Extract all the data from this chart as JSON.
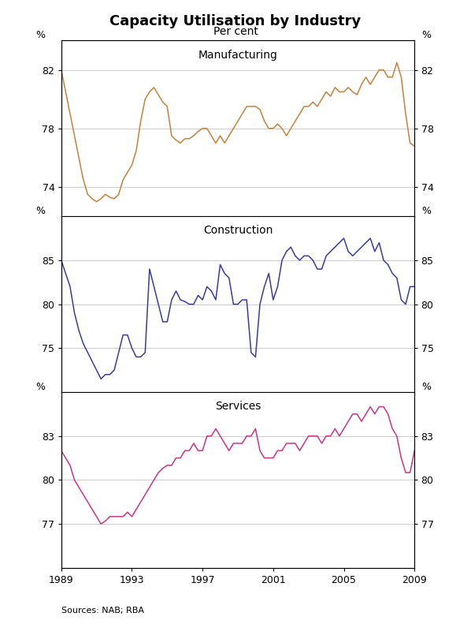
{
  "title": "Capacity Utilisation by Industry",
  "subtitle": "Per cent",
  "source": "Sources: NAB; RBA",
  "panels": [
    {
      "label": "Manufacturing",
      "color": "#C8813A",
      "ylim": [
        72,
        84
      ],
      "yticks": [
        74,
        78,
        82
      ],
      "data_x": [
        1989.0,
        1989.25,
        1989.5,
        1989.75,
        1990.0,
        1990.25,
        1990.5,
        1990.75,
        1991.0,
        1991.25,
        1991.5,
        1991.75,
        1992.0,
        1992.25,
        1992.5,
        1992.75,
        1993.0,
        1993.25,
        1993.5,
        1993.75,
        1994.0,
        1994.25,
        1994.5,
        1994.75,
        1995.0,
        1995.25,
        1995.5,
        1995.75,
        1996.0,
        1996.25,
        1996.5,
        1996.75,
        1997.0,
        1997.25,
        1997.5,
        1997.75,
        1998.0,
        1998.25,
        1998.5,
        1998.75,
        1999.0,
        1999.25,
        1999.5,
        1999.75,
        2000.0,
        2000.25,
        2000.5,
        2000.75,
        2001.0,
        2001.25,
        2001.5,
        2001.75,
        2002.0,
        2002.25,
        2002.5,
        2002.75,
        2003.0,
        2003.25,
        2003.5,
        2003.75,
        2004.0,
        2004.25,
        2004.5,
        2004.75,
        2005.0,
        2005.25,
        2005.5,
        2005.75,
        2006.0,
        2006.25,
        2006.5,
        2006.75,
        2007.0,
        2007.25,
        2007.5,
        2007.75,
        2008.0,
        2008.25,
        2008.5,
        2008.75,
        2009.0
      ],
      "data_y": [
        82.0,
        80.5,
        79.0,
        77.5,
        76.0,
        74.5,
        73.5,
        73.2,
        73.0,
        73.2,
        73.5,
        73.3,
        73.2,
        73.5,
        74.5,
        75.0,
        75.5,
        76.5,
        78.5,
        80.0,
        80.5,
        80.8,
        80.3,
        79.8,
        79.5,
        77.5,
        77.2,
        77.0,
        77.3,
        77.3,
        77.5,
        77.8,
        78.0,
        78.0,
        77.5,
        77.0,
        77.5,
        77.0,
        77.5,
        78.0,
        78.5,
        79.0,
        79.5,
        79.5,
        79.5,
        79.3,
        78.5,
        78.0,
        78.0,
        78.3,
        78.0,
        77.5,
        78.0,
        78.5,
        79.0,
        79.5,
        79.5,
        79.8,
        79.5,
        80.0,
        80.5,
        80.2,
        80.8,
        80.5,
        80.5,
        80.8,
        80.5,
        80.3,
        81.0,
        81.5,
        81.0,
        81.5,
        82.0,
        82.0,
        81.5,
        81.5,
        82.5,
        81.5,
        79.0,
        77.0,
        76.8
      ]
    },
    {
      "label": "Construction",
      "color": "#3B3B9E",
      "ylim": [
        70,
        90
      ],
      "yticks": [
        75,
        80,
        85
      ],
      "data_x": [
        1989.0,
        1989.25,
        1989.5,
        1989.75,
        1990.0,
        1990.25,
        1990.5,
        1990.75,
        1991.0,
        1991.25,
        1991.5,
        1991.75,
        1992.0,
        1992.25,
        1992.5,
        1992.75,
        1993.0,
        1993.25,
        1993.5,
        1993.75,
        1994.0,
        1994.25,
        1994.5,
        1994.75,
        1995.0,
        1995.25,
        1995.5,
        1995.75,
        1996.0,
        1996.25,
        1996.5,
        1996.75,
        1997.0,
        1997.25,
        1997.5,
        1997.75,
        1998.0,
        1998.25,
        1998.5,
        1998.75,
        1999.0,
        1999.25,
        1999.5,
        1999.75,
        2000.0,
        2000.25,
        2000.5,
        2000.75,
        2001.0,
        2001.25,
        2001.5,
        2001.75,
        2002.0,
        2002.25,
        2002.5,
        2002.75,
        2003.0,
        2003.25,
        2003.5,
        2003.75,
        2004.0,
        2004.25,
        2004.5,
        2004.75,
        2005.0,
        2005.25,
        2005.5,
        2005.75,
        2006.0,
        2006.25,
        2006.5,
        2006.75,
        2007.0,
        2007.25,
        2007.5,
        2007.75,
        2008.0,
        2008.25,
        2008.5,
        2008.75,
        2009.0
      ],
      "data_y": [
        85.0,
        83.5,
        82.0,
        79.0,
        77.0,
        75.5,
        74.5,
        73.5,
        72.5,
        71.5,
        72.0,
        72.0,
        72.5,
        74.5,
        76.5,
        76.5,
        75.0,
        74.0,
        74.0,
        74.5,
        84.0,
        82.0,
        80.0,
        78.0,
        78.0,
        80.5,
        81.5,
        80.5,
        80.3,
        80.0,
        80.0,
        81.0,
        80.5,
        82.0,
        81.5,
        80.5,
        84.5,
        83.5,
        83.0,
        80.0,
        80.0,
        80.5,
        80.5,
        74.5,
        74.0,
        80.0,
        82.0,
        83.5,
        80.5,
        82.0,
        85.0,
        86.0,
        86.5,
        85.5,
        85.0,
        85.5,
        85.5,
        85.0,
        84.0,
        84.0,
        85.5,
        86.0,
        86.5,
        87.0,
        87.5,
        86.0,
        85.5,
        86.0,
        86.5,
        87.0,
        87.5,
        86.0,
        87.0,
        85.0,
        84.5,
        83.5,
        83.0,
        80.5,
        80.0,
        82.0,
        82.0
      ]
    },
    {
      "label": "Services",
      "color": "#CC3388",
      "ylim": [
        74,
        86
      ],
      "yticks": [
        77,
        80,
        83
      ],
      "data_x": [
        1989.0,
        1989.25,
        1989.5,
        1989.75,
        1990.0,
        1990.25,
        1990.5,
        1990.75,
        1991.0,
        1991.25,
        1991.5,
        1991.75,
        1992.0,
        1992.25,
        1992.5,
        1992.75,
        1993.0,
        1993.25,
        1993.5,
        1993.75,
        1994.0,
        1994.25,
        1994.5,
        1994.75,
        1995.0,
        1995.25,
        1995.5,
        1995.75,
        1996.0,
        1996.25,
        1996.5,
        1996.75,
        1997.0,
        1997.25,
        1997.5,
        1997.75,
        1998.0,
        1998.25,
        1998.5,
        1998.75,
        1999.0,
        1999.25,
        1999.5,
        1999.75,
        2000.0,
        2000.25,
        2000.5,
        2000.75,
        2001.0,
        2001.25,
        2001.5,
        2001.75,
        2002.0,
        2002.25,
        2002.5,
        2002.75,
        2003.0,
        2003.25,
        2003.5,
        2003.75,
        2004.0,
        2004.25,
        2004.5,
        2004.75,
        2005.0,
        2005.25,
        2005.5,
        2005.75,
        2006.0,
        2006.25,
        2006.5,
        2006.75,
        2007.0,
        2007.25,
        2007.5,
        2007.75,
        2008.0,
        2008.25,
        2008.5,
        2008.75,
        2009.0
      ],
      "data_y": [
        82.0,
        81.5,
        81.0,
        80.0,
        79.5,
        79.0,
        78.5,
        78.0,
        77.5,
        77.0,
        77.2,
        77.5,
        77.5,
        77.5,
        77.5,
        77.8,
        77.5,
        78.0,
        78.5,
        79.0,
        79.5,
        80.0,
        80.5,
        80.8,
        81.0,
        81.0,
        81.5,
        81.5,
        82.0,
        82.0,
        82.5,
        82.0,
        82.0,
        83.0,
        83.0,
        83.5,
        83.0,
        82.5,
        82.0,
        82.5,
        82.5,
        82.5,
        83.0,
        83.0,
        83.5,
        82.0,
        81.5,
        81.5,
        81.5,
        82.0,
        82.0,
        82.5,
        82.5,
        82.5,
        82.0,
        82.5,
        83.0,
        83.0,
        83.0,
        82.5,
        83.0,
        83.0,
        83.5,
        83.0,
        83.5,
        84.0,
        84.5,
        84.5,
        84.0,
        84.5,
        85.0,
        84.5,
        85.0,
        85.0,
        84.5,
        83.5,
        83.0,
        81.5,
        80.5,
        80.5,
        82.0
      ]
    }
  ],
  "xlim": [
    1989,
    2009
  ],
  "xticks": [
    1989,
    1993,
    1997,
    2001,
    2005,
    2009
  ],
  "xticklabels": [
    "1989",
    "1993",
    "1997",
    "2001",
    "2005",
    "2009"
  ],
  "grid_color": "#CCCCCC",
  "title_fontsize": 13,
  "subtitle_fontsize": 10,
  "tick_fontsize": 9,
  "label_fontsize": 10,
  "source_fontsize": 8
}
